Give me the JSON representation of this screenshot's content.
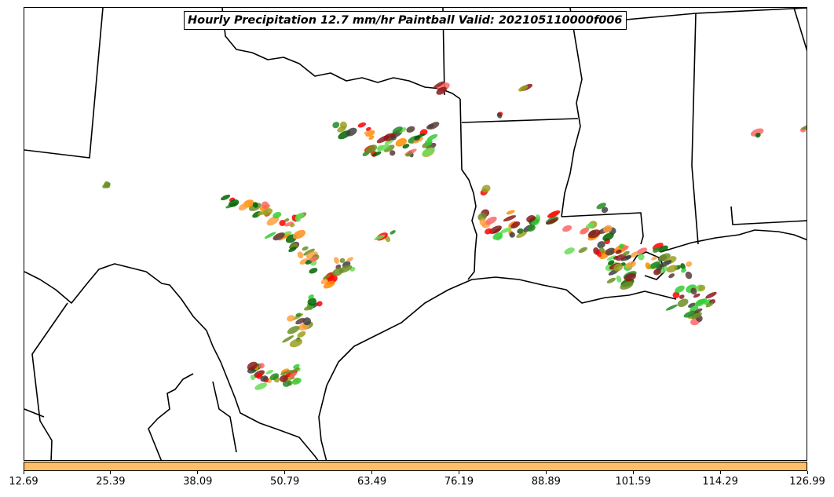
{
  "map": {
    "title": "Hourly Precipitation 12.7 mm/hr Paintball Valid: 202105110000f006",
    "background_color": "#ffffff",
    "border_color": "#000000",
    "paintball_colors": [
      "#ff0000",
      "#ff6666",
      "#ff8c00",
      "#ffa040",
      "#32cd32",
      "#66dd55",
      "#228b22",
      "#006400",
      "#6b8e23",
      "#9aa020",
      "#8b1a1a",
      "#5a3a3a",
      "#404040"
    ]
  },
  "colorbar": {
    "fill_color": "#ffbf66",
    "tick_labels": [
      "12.69",
      "25.39",
      "38.09",
      "50.79",
      "63.49",
      "76.19",
      "88.89",
      "101.59",
      "114.29",
      "126.99"
    ]
  }
}
